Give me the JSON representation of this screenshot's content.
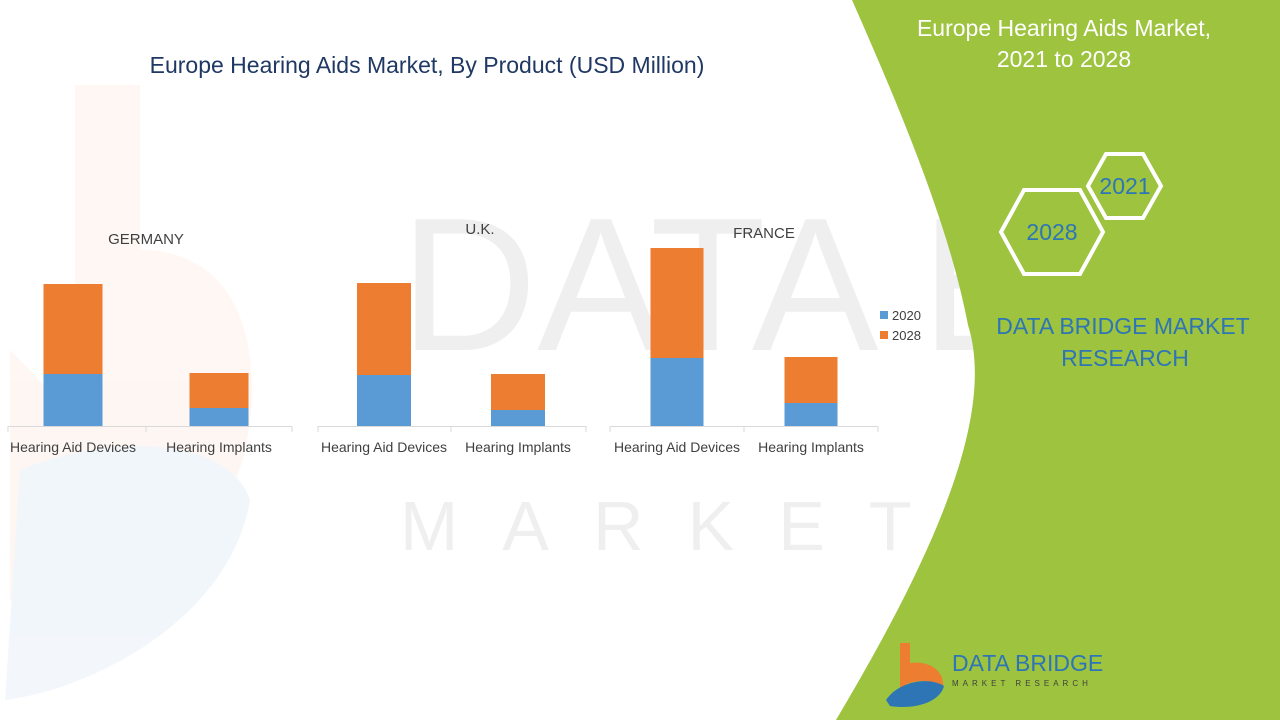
{
  "colors": {
    "series_2020": "#5b9bd5",
    "series_2028": "#ed7d31",
    "panel_green": "#9dc33f",
    "title_navy": "#1f3864",
    "brand_blue": "#2e75b6",
    "text_gray": "#404040",
    "axis_gray": "#d9d9d9"
  },
  "side_panel": {
    "title_line1": "Europe Hearing Aids Market,",
    "title_line2": "2021 to 2028",
    "hex_year_small": "2021",
    "hex_year_large": "2028",
    "brand_line1": "DATA BRIDGE MARKET",
    "brand_line2": "RESEARCH"
  },
  "logo": {
    "name": "DATA BRIDGE",
    "tagline": "MARKET RESEARCH"
  },
  "watermark": {
    "line1": "DATA BRIDGE",
    "line2": "MARKET RESEARCH"
  },
  "chart_data": {
    "type": "bar",
    "stacked": true,
    "title": "Europe Hearing Aids Market, By Product (USD Million)",
    "legend": {
      "position": "right",
      "entries": [
        "2020",
        "2028"
      ]
    },
    "series_names": [
      "2020",
      "2028"
    ],
    "panels": [
      {
        "group": "GERMANY",
        "categories": [
          "Hearing Aid Devices",
          "Hearing Implants"
        ],
        "series": [
          {
            "name": "2020",
            "values": [
              52,
              18
            ]
          },
          {
            "name": "2028",
            "values": [
              90,
              35
            ]
          }
        ]
      },
      {
        "group": "U.K.",
        "categories": [
          "Hearing Aid Devices",
          "Hearing Implants"
        ],
        "series": [
          {
            "name": "2020",
            "values": [
              51,
              16
            ]
          },
          {
            "name": "2028",
            "values": [
              92,
              36
            ]
          }
        ]
      },
      {
        "group": "FRANCE",
        "categories": [
          "Hearing Aid Devices",
          "Hearing Implants"
        ],
        "series": [
          {
            "name": "2020",
            "values": [
              68,
              23
            ]
          },
          {
            "name": "2028",
            "values": [
              110,
              46
            ]
          }
        ]
      }
    ]
  }
}
